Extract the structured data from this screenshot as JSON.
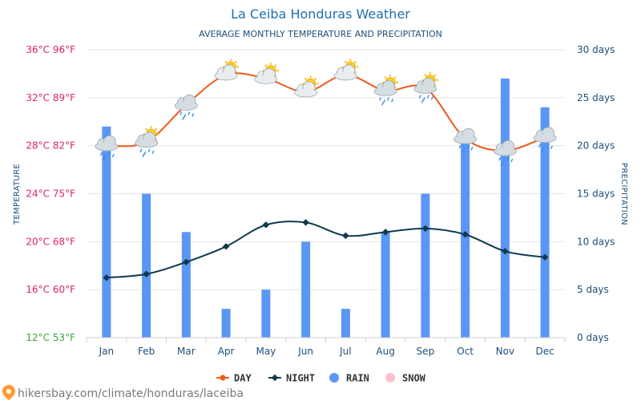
{
  "colors": {
    "day": "#f05a1a",
    "night": "#0f3a4f",
    "rain": "#5a96f5",
    "snow": "#ffc0cb",
    "left_axis": "#e0245e",
    "left_axis_bottom": "#3aa63a",
    "right_axis": "#1e4e79",
    "grid": "#e6e6e6"
  },
  "footer": {
    "text": "hikersbay.com/climate/honduras/laceiba",
    "icon": "map-pin-icon"
  },
  "chart_data": {
    "type": "line+bar",
    "title": "La Ceiba Honduras Weather",
    "subtitle": "AVERAGE MONTHLY TEMPERATURE AND PRECIPITATION",
    "ylabel_left": "TEMPERATURE",
    "ylabel_right": "PRECIPITATION",
    "categories": [
      "Jan",
      "Feb",
      "Mar",
      "Apr",
      "May",
      "Jun",
      "Jul",
      "Aug",
      "Sep",
      "Oct",
      "Nov",
      "Dec"
    ],
    "left_axis": {
      "range": [
        12,
        36
      ],
      "ticks": [
        {
          "value": 36,
          "label": "36°C 96°F"
        },
        {
          "value": 32,
          "label": "32°C 89°F"
        },
        {
          "value": 28,
          "label": "28°C 82°F"
        },
        {
          "value": 24,
          "label": "24°C 75°F"
        },
        {
          "value": 20,
          "label": "20°C 68°F"
        },
        {
          "value": 16,
          "label": "16°C 60°F"
        },
        {
          "value": 12,
          "label": "12°C 53°F"
        }
      ]
    },
    "right_axis": {
      "range": [
        0,
        30
      ],
      "ticks": [
        {
          "value": 30,
          "label": "30 days"
        },
        {
          "value": 25,
          "label": "25 days"
        },
        {
          "value": 20,
          "label": "20 days"
        },
        {
          "value": 15,
          "label": "15 days"
        },
        {
          "value": 10,
          "label": "10 days"
        },
        {
          "value": 5,
          "label": "5 days"
        },
        {
          "value": 0,
          "label": "0 days"
        }
      ]
    },
    "series": [
      {
        "name": "DAY",
        "type": "line",
        "axis": "left",
        "values": [
          28.0,
          28.3,
          31.4,
          33.9,
          33.6,
          32.5,
          33.9,
          32.6,
          32.8,
          28.6,
          27.6,
          28.7
        ]
      },
      {
        "name": "NIGHT",
        "type": "line",
        "axis": "left",
        "values": [
          17.0,
          17.3,
          18.3,
          19.6,
          21.4,
          21.6,
          20.5,
          20.8,
          21.1,
          20.6,
          19.2,
          18.7
        ]
      },
      {
        "name": "RAIN",
        "type": "bar",
        "axis": "right",
        "values": [
          22,
          15,
          11,
          3,
          5,
          10,
          3,
          11,
          15,
          21,
          27,
          24
        ]
      },
      {
        "name": "SNOW",
        "type": "bar",
        "axis": "right",
        "values": [
          0,
          0,
          0,
          0,
          0,
          0,
          0,
          0,
          0,
          0,
          0,
          0
        ]
      }
    ],
    "weather_icons": [
      "cloud-rain-icon",
      "sun-cloud-rain-icon",
      "cloud-rain-icon",
      "sun-cloud-icon",
      "sun-cloud-icon",
      "sun-cloud-icon",
      "sun-cloud-icon",
      "sun-cloud-rain-icon",
      "sun-cloud-rain-icon",
      "cloud-rain-icon",
      "cloud-rain-icon",
      "cloud-rain-icon"
    ],
    "legend": [
      {
        "label": "DAY",
        "marker": "line-dot"
      },
      {
        "label": "NIGHT",
        "marker": "line-diamond"
      },
      {
        "label": "RAIN",
        "marker": "circle"
      },
      {
        "label": "SNOW",
        "marker": "circle"
      }
    ],
    "grid": true,
    "legend_position": "bottom-center"
  }
}
